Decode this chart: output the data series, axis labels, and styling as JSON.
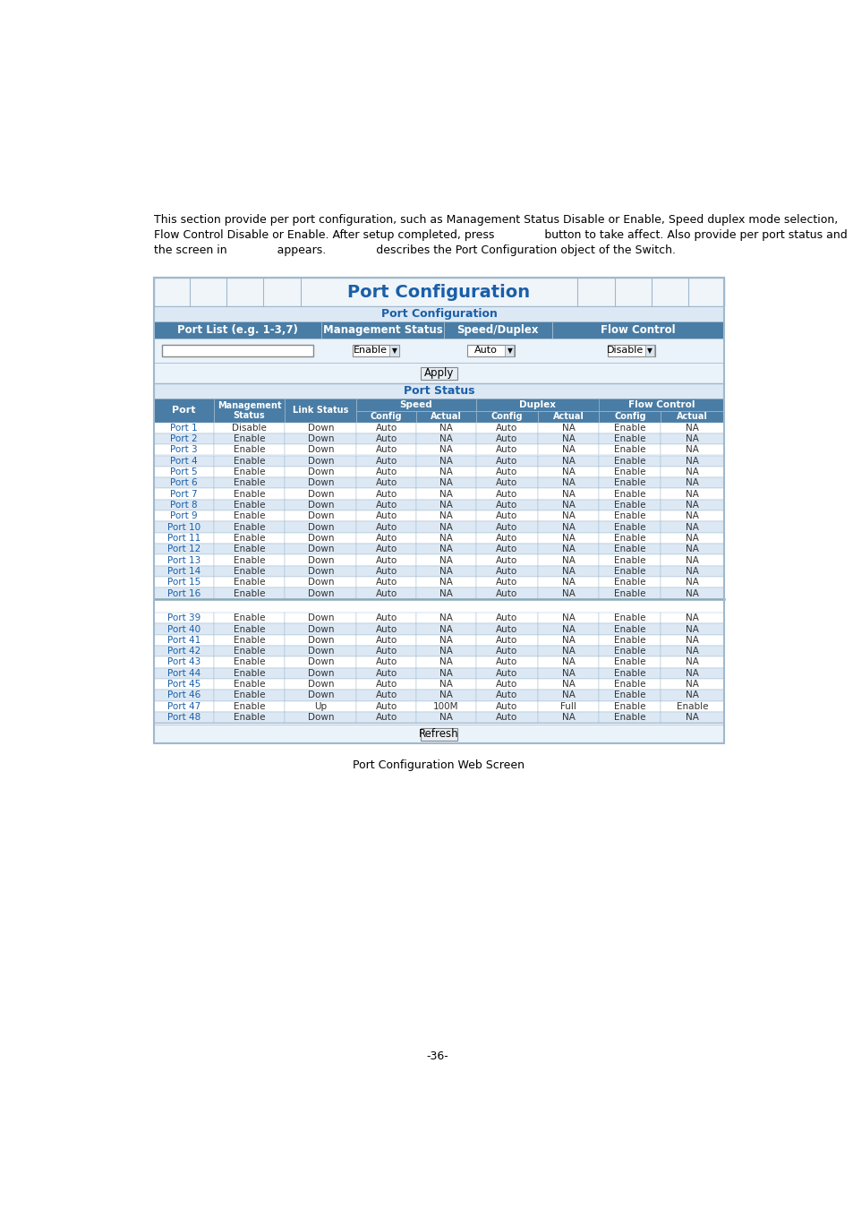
{
  "body_text_line1": "This section provide per port configuration, such as Management Status Disable or Enable, Speed duplex mode selection,",
  "body_text_line2": "Flow Control Disable or Enable. After setup completed, press              button to take affect. Also provide per port status and",
  "body_text_line3": "the screen in              appears.              describes the Port Configuration object of the Switch.",
  "title_text": "Port Configuration",
  "config_section_title": "Port Configuration",
  "config_headers": [
    "Port List (e.g. 1-3,7)",
    "Management Status",
    "Speed/Duplex",
    "Flow Control"
  ],
  "config_values": [
    "",
    "Enable",
    "Auto",
    "Disable"
  ],
  "apply_btn": "Apply",
  "status_section_title": "Port Status",
  "port_data_top": [
    [
      "Port 1",
      "Disable",
      "Down",
      "Auto",
      "NA",
      "Auto",
      "NA",
      "Enable",
      "NA"
    ],
    [
      "Port 2",
      "Enable",
      "Down",
      "Auto",
      "NA",
      "Auto",
      "NA",
      "Enable",
      "NA"
    ],
    [
      "Port 3",
      "Enable",
      "Down",
      "Auto",
      "NA",
      "Auto",
      "NA",
      "Enable",
      "NA"
    ],
    [
      "Port 4",
      "Enable",
      "Down",
      "Auto",
      "NA",
      "Auto",
      "NA",
      "Enable",
      "NA"
    ],
    [
      "Port 5",
      "Enable",
      "Down",
      "Auto",
      "NA",
      "Auto",
      "NA",
      "Enable",
      "NA"
    ],
    [
      "Port 6",
      "Enable",
      "Down",
      "Auto",
      "NA",
      "Auto",
      "NA",
      "Enable",
      "NA"
    ],
    [
      "Port 7",
      "Enable",
      "Down",
      "Auto",
      "NA",
      "Auto",
      "NA",
      "Enable",
      "NA"
    ],
    [
      "Port 8",
      "Enable",
      "Down",
      "Auto",
      "NA",
      "Auto",
      "NA",
      "Enable",
      "NA"
    ],
    [
      "Port 9",
      "Enable",
      "Down",
      "Auto",
      "NA",
      "Auto",
      "NA",
      "Enable",
      "NA"
    ],
    [
      "Port 10",
      "Enable",
      "Down",
      "Auto",
      "NA",
      "Auto",
      "NA",
      "Enable",
      "NA"
    ],
    [
      "Port 11",
      "Enable",
      "Down",
      "Auto",
      "NA",
      "Auto",
      "NA",
      "Enable",
      "NA"
    ],
    [
      "Port 12",
      "Enable",
      "Down",
      "Auto",
      "NA",
      "Auto",
      "NA",
      "Enable",
      "NA"
    ],
    [
      "Port 13",
      "Enable",
      "Down",
      "Auto",
      "NA",
      "Auto",
      "NA",
      "Enable",
      "NA"
    ],
    [
      "Port 14",
      "Enable",
      "Down",
      "Auto",
      "NA",
      "Auto",
      "NA",
      "Enable",
      "NA"
    ],
    [
      "Port 15",
      "Enable",
      "Down",
      "Auto",
      "NA",
      "Auto",
      "NA",
      "Enable",
      "NA"
    ],
    [
      "Port 16",
      "Enable",
      "Down",
      "Auto",
      "NA",
      "Auto",
      "NA",
      "Enable",
      "NA"
    ]
  ],
  "port_data_bot": [
    [
      "Port 39",
      "Enable",
      "Down",
      "Auto",
      "NA",
      "Auto",
      "NA",
      "Enable",
      "NA"
    ],
    [
      "Port 40",
      "Enable",
      "Down",
      "Auto",
      "NA",
      "Auto",
      "NA",
      "Enable",
      "NA"
    ],
    [
      "Port 41",
      "Enable",
      "Down",
      "Auto",
      "NA",
      "Auto",
      "NA",
      "Enable",
      "NA"
    ],
    [
      "Port 42",
      "Enable",
      "Down",
      "Auto",
      "NA",
      "Auto",
      "NA",
      "Enable",
      "NA"
    ],
    [
      "Port 43",
      "Enable",
      "Down",
      "Auto",
      "NA",
      "Auto",
      "NA",
      "Enable",
      "NA"
    ],
    [
      "Port 44",
      "Enable",
      "Down",
      "Auto",
      "NA",
      "Auto",
      "NA",
      "Enable",
      "NA"
    ],
    [
      "Port 45",
      "Enable",
      "Down",
      "Auto",
      "NA",
      "Auto",
      "NA",
      "Enable",
      "NA"
    ],
    [
      "Port 46",
      "Enable",
      "Down",
      "Auto",
      "NA",
      "Auto",
      "NA",
      "Enable",
      "NA"
    ],
    [
      "Port 47",
      "Enable",
      "Up",
      "Auto",
      "100M",
      "Auto",
      "Full",
      "Enable",
      "Enable"
    ],
    [
      "Port 48",
      "Enable",
      "Down",
      "Auto",
      "NA",
      "Auto",
      "NA",
      "Enable",
      "NA"
    ]
  ],
  "refresh_btn": "Refresh",
  "caption": "Port Configuration Web Screen",
  "page_num": "-36-",
  "header_bg": "#4a7da5",
  "header_fg": "#ffffff",
  "row_alt_bg": "#dce8f4",
  "row_norm_bg": "#ffffff",
  "section_hdr_bg": "#dce8f4",
  "title_color": "#1a5fa8",
  "outer_border_color": "#a0b8cc",
  "inner_bg": "#eaf2fa",
  "body_fs": 9,
  "tbl_fs": 8,
  "caption_fs": 9
}
